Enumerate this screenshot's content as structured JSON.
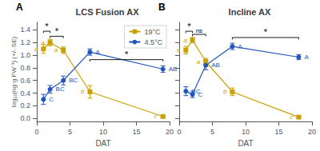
{
  "chart_data": [
    {
      "type": "line",
      "title": "LCS Fusion AX",
      "label": "A",
      "xlabel": "DAT",
      "ylabel": "log₁₀(ng·g FW⁻¹) (+/- SE)",
      "x": [
        1,
        2,
        4,
        8,
        19
      ],
      "xlim": [
        0,
        20
      ],
      "xticks": [
        0,
        5,
        10,
        15,
        20
      ],
      "ylim": [
        -0.05,
        1.52
      ],
      "yticks": [
        {
          "value": 0.0,
          "label": "0.0"
        },
        0.2,
        0.4,
        0.6,
        0.8,
        {
          "value": 1.0,
          "label": "1.0"
        },
        1.2,
        1.4
      ],
      "grid": false,
      "legend": "upper right",
      "series": [
        {
          "name": "19°C",
          "color": "#C8A000",
          "marker": "square",
          "values": [
            1.1,
            1.2,
            1.08,
            0.42,
            0.03
          ],
          "yerr": [
            0.07,
            0.05,
            0.05,
            0.1,
            0.02
          ],
          "point_labels": [
            "a",
            "a",
            "a",
            "b",
            "c"
          ]
        },
        {
          "name": "4.5°C",
          "color": "#2255BB",
          "marker": "circle",
          "values": [
            0.3,
            0.46,
            0.6,
            1.05,
            0.78
          ],
          "yerr": [
            0.08,
            0.06,
            0.07,
            0.05,
            0.05
          ],
          "point_labels": [
            "C",
            "BC",
            "BC",
            "A",
            "AB"
          ]
        }
      ],
      "annotations": [
        {
          "x1": 1,
          "x2": 2,
          "y": 1.38,
          "text": "*"
        },
        {
          "x1": 2,
          "x2": 4,
          "y": 1.3,
          "text": "*"
        },
        {
          "x1": 8,
          "x2": 19,
          "y": 0.93,
          "text": "*"
        }
      ]
    },
    {
      "type": "line",
      "title": "Incline AX",
      "label": "B",
      "xlabel": "DAT",
      "x": [
        1,
        2,
        4,
        8,
        18
      ],
      "xlim": [
        0,
        20
      ],
      "xticks": [
        0,
        5,
        10,
        15,
        20
      ],
      "ylim": [
        -0.05,
        1.52
      ],
      "yticks": [
        {
          "value": 0.0,
          "label": "0.0"
        },
        0.2,
        0.4,
        0.6,
        0.8,
        {
          "value": 1.0,
          "label": "1.0"
        },
        1.2,
        1.4
      ],
      "grid": false,
      "tick_labels": "x",
      "series": [
        {
          "color": "#C8A000",
          "marker": "square",
          "values": [
            1.08,
            1.24,
            0.9,
            0.42,
            0.02
          ],
          "yerr": [
            0.06,
            0.04,
            0.05,
            0.06,
            0.01
          ],
          "point_labels": [
            "a",
            "a",
            "a",
            "b",
            "c"
          ]
        },
        {
          "color": "#2255BB",
          "marker": "circle",
          "values": [
            0.43,
            0.38,
            0.84,
            1.14,
            0.97
          ],
          "yerr": [
            0.07,
            0.05,
            0.07,
            0.05,
            0.04
          ],
          "point_labels": [
            "BC",
            "C",
            "AB",
            "A",
            "A"
          ]
        }
      ],
      "annotations": [
        {
          "x1": 1,
          "x2": 2,
          "y": 1.38,
          "text": "*"
        },
        {
          "x1": 2,
          "x2": 4,
          "y": 1.33,
          "text": "ns"
        },
        {
          "x1": 8,
          "x2": 18,
          "y": 1.28,
          "text": "*"
        }
      ]
    }
  ]
}
